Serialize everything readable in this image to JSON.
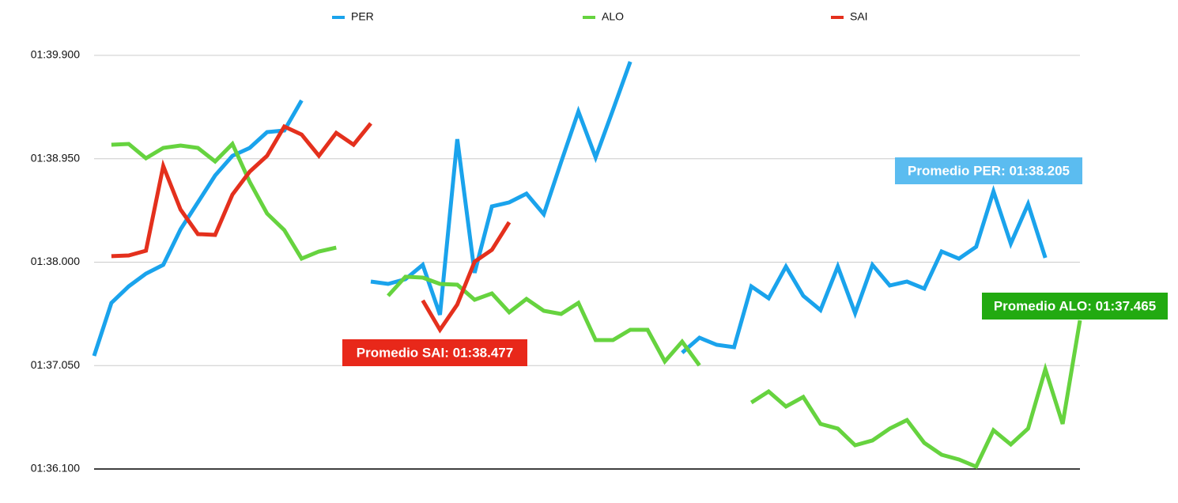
{
  "chart_data": {
    "type": "line",
    "categories": [
      null,
      null,
      null,
      null,
      null,
      null,
      null,
      null,
      null,
      null,
      null,
      null,
      null,
      null,
      null,
      null,
      null,
      null,
      null,
      null,
      null,
      null,
      null,
      null,
      null,
      null,
      null,
      null,
      null,
      null,
      null,
      null,
      null,
      null,
      null,
      null,
      null,
      null,
      null,
      null,
      null,
      null,
      null,
      null,
      null,
      null,
      null,
      null,
      null,
      null,
      null,
      null,
      null,
      null,
      null,
      null,
      null,
      null
    ],
    "ylim": [
      96.1,
      99.9
    ],
    "yticks": [
      {
        "value": 96.1,
        "label": "01:36.100"
      },
      {
        "value": 97.05,
        "label": "01:37.050"
      },
      {
        "value": 98.0,
        "label": "01:38.000"
      },
      {
        "value": 98.95,
        "label": "01:38.950"
      },
      {
        "value": 99.9,
        "label": "01:39.900"
      }
    ],
    "grid": true,
    "legend": "top",
    "series": [
      {
        "name": "PER",
        "color": "#1aa3ec",
        "values": [
          97.139,
          97.626,
          97.778,
          97.895,
          97.975,
          98.302,
          98.549,
          98.796,
          98.977,
          99.05,
          99.195,
          99.21,
          99.486,
          null,
          null,
          null,
          97.822,
          97.8,
          97.844,
          97.975,
          97.517,
          99.13,
          97.902,
          98.512,
          98.549,
          98.629,
          98.44,
          98.919,
          99.384,
          98.963,
          99.399,
          99.842,
          null,
          null,
          97.168,
          97.306,
          97.241,
          97.219,
          97.778,
          97.669,
          97.96,
          97.691,
          97.56,
          97.96,
          97.531,
          97.975,
          97.786,
          97.822,
          97.757,
          98.098,
          98.033,
          98.142,
          98.65,
          98.171,
          98.534,
          98.04,
          null,
          null
        ]
      },
      {
        "name": "ALO",
        "color": "#66d33f",
        "values": [
          null,
          99.079,
          99.086,
          98.955,
          99.05,
          99.072,
          99.05,
          98.926,
          99.086,
          98.737,
          98.447,
          98.294,
          98.033,
          98.098,
          98.134,
          null,
          null,
          97.691,
          97.866,
          97.858,
          97.8,
          97.793,
          97.655,
          97.713,
          97.539,
          97.662,
          97.553,
          97.524,
          97.626,
          97.284,
          97.284,
          97.379,
          97.379,
          97.088,
          97.27,
          97.052,
          null,
          null,
          96.71,
          96.812,
          96.674,
          96.761,
          96.514,
          96.471,
          96.318,
          96.362,
          96.471,
          96.55,
          96.34,
          96.231,
          96.187,
          96.122,
          96.456,
          96.325,
          96.471,
          97.016,
          96.514,
          97.466
        ]
      },
      {
        "name": "SAI",
        "color": "#e4301d",
        "values": [
          null,
          98.055,
          98.062,
          98.105,
          98.883,
          98.483,
          98.258,
          98.251,
          98.621,
          98.832,
          98.977,
          99.246,
          99.173,
          98.977,
          99.188,
          99.079,
          99.275,
          null,
          null,
          97.648,
          97.379,
          97.611,
          98.004,
          98.113,
          98.367,
          null,
          null,
          null,
          null,
          null,
          null,
          null,
          null,
          null,
          null,
          null,
          null,
          null,
          null,
          null,
          null,
          null,
          null,
          null,
          null,
          null,
          null,
          null,
          null,
          null,
          null,
          null,
          null,
          null,
          null,
          null,
          null,
          null
        ]
      }
    ],
    "annotations": [
      {
        "text": "Promedio PER: 01:38.205",
        "color": "#5bbcf0"
      },
      {
        "text": "Promedio ALO: 01:37.465",
        "color": "#22aa11"
      },
      {
        "text": "Promedio SAI: 01:38.477",
        "color": "#e8281a"
      }
    ]
  }
}
